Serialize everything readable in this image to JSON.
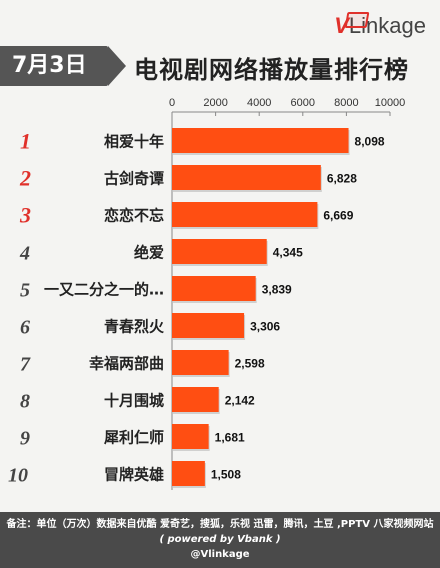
{
  "brand": {
    "logo_v": "V",
    "logo_rest": "Linkage"
  },
  "header": {
    "date": "7月3日",
    "title": "电视剧网络播放量排行榜"
  },
  "footer": {
    "line1": "备注：单位（万次）数据来自优酷 爱奇艺，搜狐，乐视  迅雷，腾讯，土豆 ,PPTV 八家视频网站",
    "line2": "( powered by Vbank )",
    "line3": "@Vlinkage"
  },
  "colors": {
    "bar": "#ff4e12",
    "rank": "#e0302a",
    "rank_alt": "#444444",
    "header_box": "#555555"
  },
  "chart_data": {
    "type": "bar",
    "orientation": "horizontal",
    "xlim": [
      0,
      10000
    ],
    "xticks": [
      0,
      2000,
      4000,
      6000,
      8000,
      10000
    ],
    "grid": false,
    "ranks": [
      "1",
      "2",
      "3",
      "4",
      "5",
      "6",
      "7",
      "8",
      "9",
      "10"
    ],
    "categories": [
      "相爱十年",
      "古剑奇谭",
      "恋恋不忘",
      "绝爱",
      "一又二分之一的…",
      "青春烈火",
      "幸福两部曲",
      "十月围城",
      "犀利仁师",
      "冒牌英雄"
    ],
    "values": [
      8098,
      6828,
      6669,
      4345,
      3839,
      3306,
      2598,
      2142,
      1681,
      1508
    ],
    "value_labels": [
      "8,098",
      "6,828",
      "6,669",
      "4,345",
      "3,839",
      "3,306",
      "2,598",
      "2,142",
      "1,681",
      "1,508"
    ]
  }
}
